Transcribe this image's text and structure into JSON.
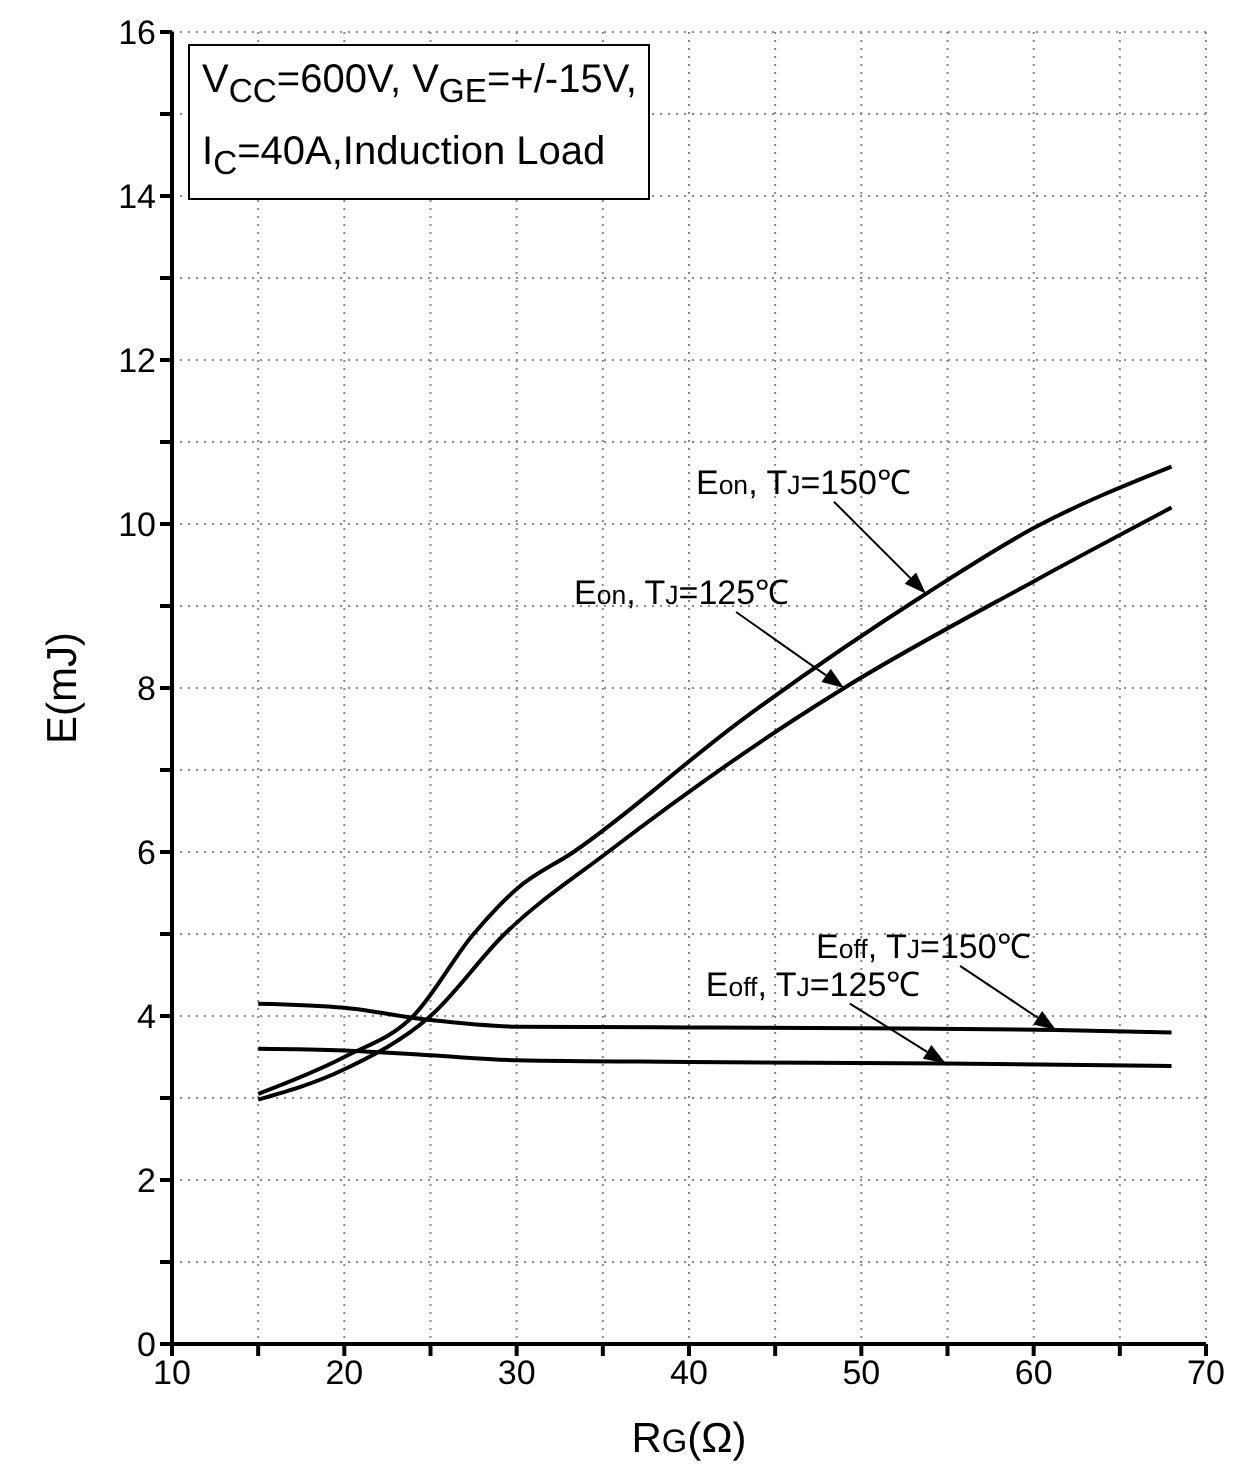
{
  "chart_data": {
    "type": "line",
    "xlabel": "R$_{G}$(Ω)",
    "ylabel": "E(mJ)",
    "xlim": [
      10,
      70
    ],
    "xticks": [
      10,
      {
        "value": 15,
        "label": null
      },
      20,
      {
        "value": 25,
        "label": null
      },
      30,
      {
        "value": 35,
        "label": null
      },
      40,
      {
        "value": 45,
        "label": null
      },
      50,
      {
        "value": 55,
        "label": null
      },
      60,
      {
        "value": 65,
        "label": null
      },
      70
    ],
    "ylim": [
      0,
      16
    ],
    "yticks": [
      0,
      {
        "value": 1,
        "label": null
      },
      2,
      {
        "value": 3,
        "label": null
      },
      4,
      {
        "value": 5,
        "label": null
      },
      6,
      {
        "value": 7,
        "label": null
      },
      8,
      {
        "value": 9,
        "label": null
      },
      10,
      {
        "value": 11,
        "label": null
      },
      12,
      {
        "value": 13,
        "label": null
      },
      14,
      {
        "value": 15,
        "label": null
      },
      16
    ],
    "grid": true,
    "marker": "none",
    "line_style": "solid",
    "series": [
      {
        "color": "#000000",
        "x": [
          15,
          20,
          24,
          27.5,
          30,
          33.3,
          43,
          53.75,
          60,
          68
        ],
        "values": [
          3.05,
          3.5,
          4.0,
          5.0,
          5.55,
          6.0,
          7.6,
          9.15,
          9.95,
          10.7
        ]
      },
      {
        "color": "#000000",
        "x": [
          15,
          20,
          25,
          29.3,
          35.3,
          46,
          49,
          60,
          68
        ],
        "values": [
          2.98,
          3.35,
          4.0,
          5.0,
          6.0,
          7.6,
          8.0,
          9.3,
          10.2
        ]
      },
      {
        "color": "#000000",
        "x": [
          15,
          20,
          25,
          30,
          40,
          50,
          61.3,
          68
        ],
        "values": [
          4.15,
          4.1,
          3.95,
          3.87,
          3.86,
          3.85,
          3.83,
          3.8
        ]
      },
      {
        "color": "#000000",
        "x": [
          15,
          20,
          25,
          30,
          40,
          54.9,
          68
        ],
        "values": [
          3.6,
          3.58,
          3.52,
          3.46,
          3.44,
          3.42,
          3.39
        ]
      }
    ],
    "annotations": [
      "V$_{CC}$=600V, V$_{GE}$=+/-15V,",
      "I$_{C}$=40A,Induction Load",
      {
        "text": "E$_{on}$, T$_{J}$=150℃",
        "x": 53.75,
        "y": 9.15
      },
      {
        "text": "E$_{on}$, T$_{J}$=125℃",
        "x": 49,
        "y": 8.0
      },
      {
        "text": "E$_{off}$, T$_{J}$=150℃",
        "x": 61.3,
        "y": 3.83
      },
      {
        "text": "E$_{off}$, T$_{J}$=125℃",
        "x": 54.9,
        "y": 3.42
      }
    ]
  }
}
